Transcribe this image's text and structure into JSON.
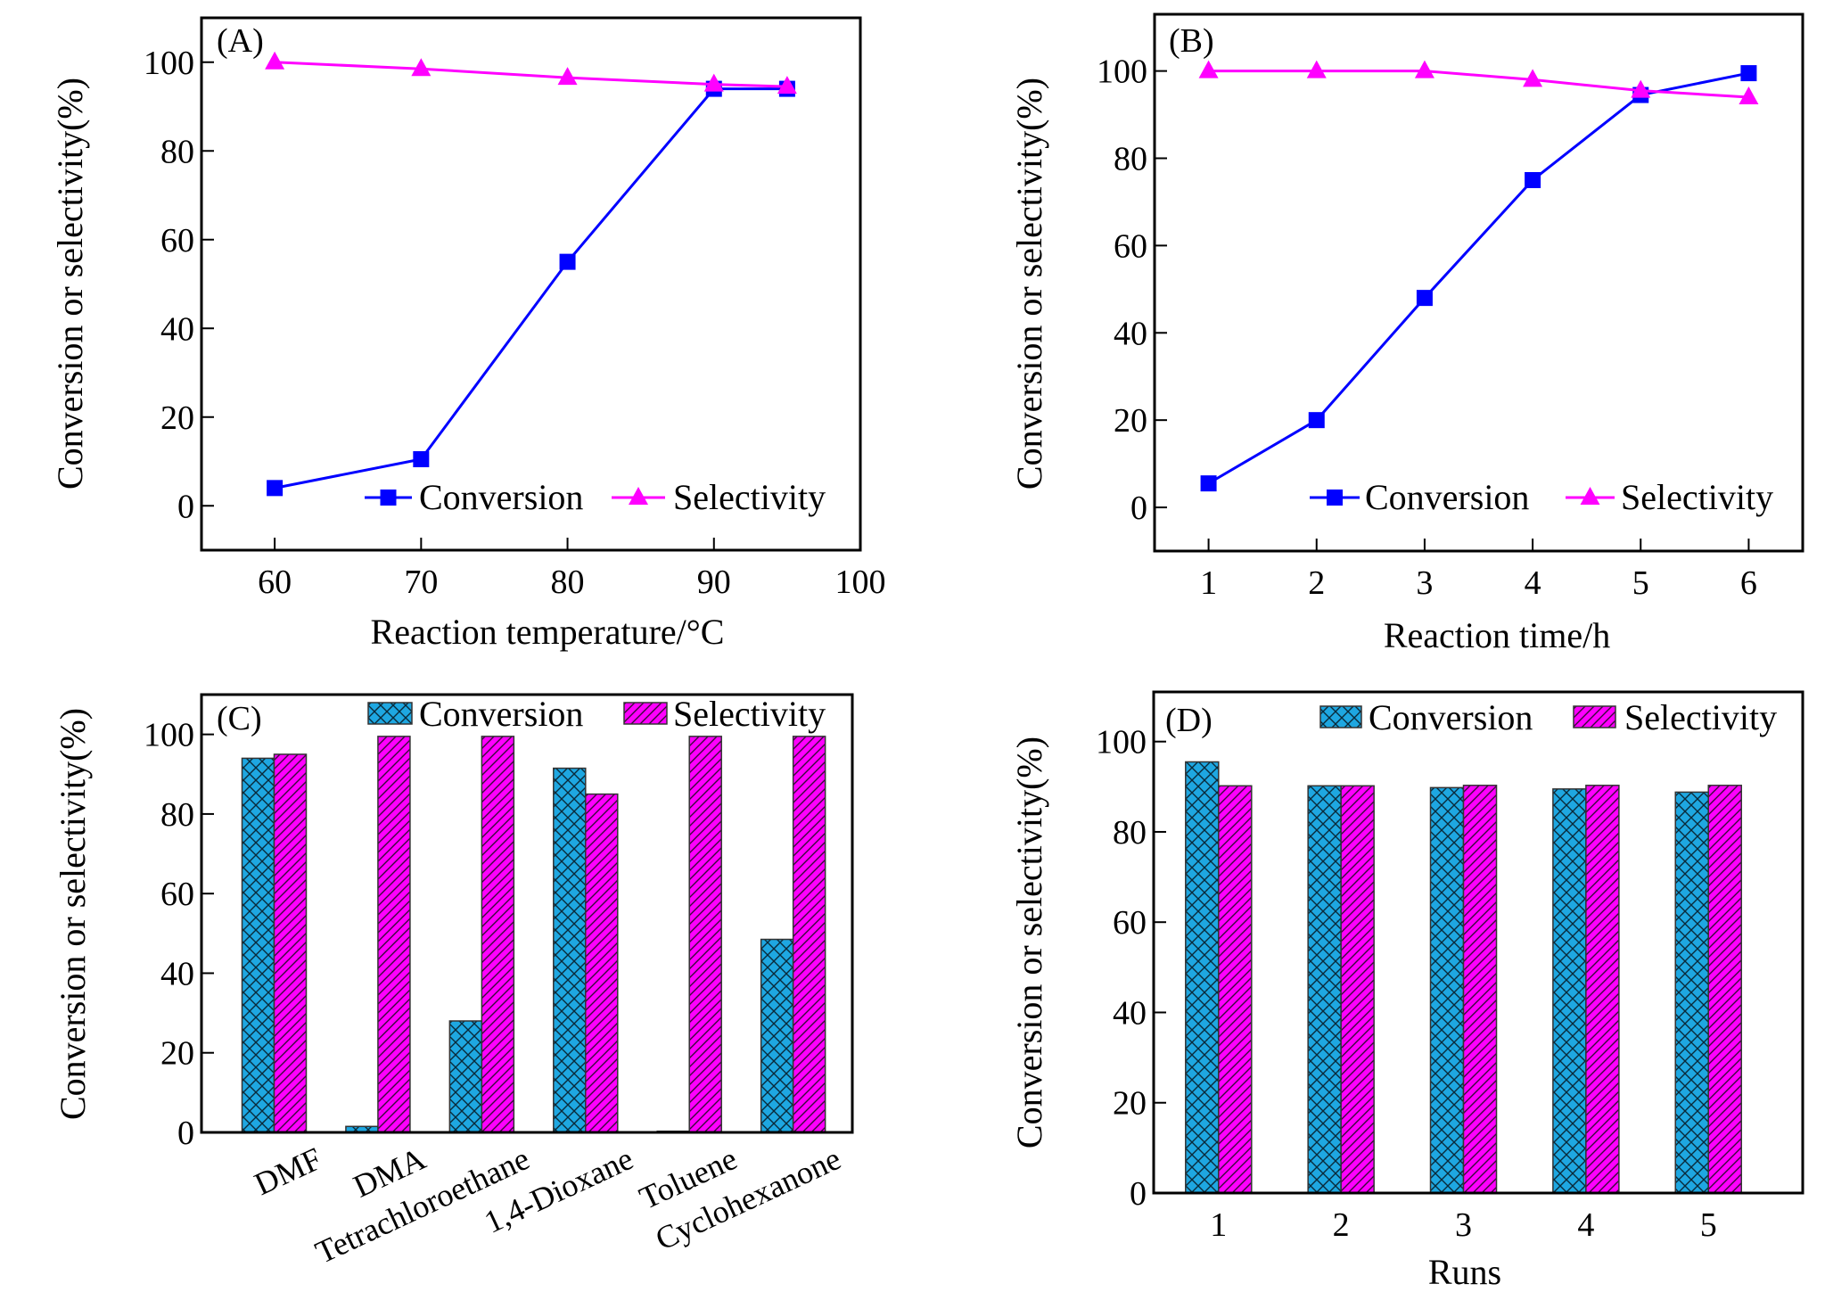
{
  "colors": {
    "conversion_line": "#0000ff",
    "selectivity_line": "#ff00ff",
    "conversion_bar": "#1ea7e1",
    "selectivity_bar": "#ff00ff"
  },
  "chart_data": [
    {
      "type": "line",
      "panel_label": "(A)",
      "xlabel": "Reaction temperature/°C",
      "ylabel": "Conversion or selectivity(%)",
      "xlim": [
        55,
        100
      ],
      "ylim": [
        -10,
        110
      ],
      "xticks": [
        60,
        70,
        80,
        90,
        100
      ],
      "yticks": [
        0,
        20,
        40,
        60,
        80,
        100
      ],
      "x": [
        60,
        70,
        80,
        90,
        95
      ],
      "series": [
        {
          "name": "Conversion",
          "marker": "square",
          "values": [
            4,
            10.5,
            55,
            94,
            94
          ]
        },
        {
          "name": "Selectivity",
          "marker": "triangle",
          "values": [
            100,
            98.5,
            96.5,
            95,
            94.5
          ]
        }
      ],
      "legend": "bottom-right",
      "grid": false
    },
    {
      "type": "line",
      "panel_label": "(B)",
      "xlabel": "Reaction time/h",
      "ylabel": "Conversion or selectivity(%)",
      "xlim": [
        0.5,
        6.5
      ],
      "ylim": [
        -10,
        113
      ],
      "xticks": [
        1,
        2,
        3,
        4,
        5,
        6
      ],
      "yticks": [
        0,
        20,
        40,
        60,
        80,
        100
      ],
      "x": [
        1,
        2,
        3,
        4,
        5,
        6
      ],
      "series": [
        {
          "name": "Conversion",
          "marker": "square",
          "values": [
            5.5,
            20,
            48,
            75,
            94.5,
            99.5
          ]
        },
        {
          "name": "Selectivity",
          "marker": "triangle",
          "values": [
            100,
            100,
            100,
            98,
            95.5,
            94
          ]
        }
      ],
      "legend": "bottom-right",
      "grid": false
    },
    {
      "type": "bar",
      "panel_label": "(C)",
      "xlabel": "",
      "ylabel": "Conversion or selectivity(%)",
      "ylim": [
        0,
        110
      ],
      "yticks": [
        0,
        20,
        40,
        60,
        80,
        100
      ],
      "categories": [
        "DMF",
        "DMA",
        "Tetrachloroethane",
        "1,4-Dioxane",
        "Toluene",
        "Cyclohexanone"
      ],
      "series": [
        {
          "name": "Conversion",
          "pattern": "crosshatch",
          "values": [
            94,
            1.5,
            28,
            91.5,
            0.3,
            48.5
          ]
        },
        {
          "name": "Selectivity",
          "pattern": "diagonal",
          "values": [
            95,
            99.5,
            99.5,
            85,
            99.5,
            99.5
          ]
        }
      ],
      "legend": "top-right",
      "grid": false
    },
    {
      "type": "bar",
      "panel_label": "(D)",
      "xlabel": "Runs",
      "ylabel": "Conversion or selectivity(%)",
      "ylim": [
        0,
        111
      ],
      "yticks": [
        0,
        20,
        40,
        60,
        80,
        100
      ],
      "categories": [
        "1",
        "2",
        "3",
        "4",
        "5"
      ],
      "series": [
        {
          "name": "Conversion",
          "pattern": "crosshatch",
          "values": [
            95.5,
            90.2,
            89.8,
            89.5,
            88.8
          ]
        },
        {
          "name": "Selectivity",
          "pattern": "diagonal",
          "values": [
            90.2,
            90.2,
            90.3,
            90.3,
            90.3
          ]
        }
      ],
      "legend": "top-right",
      "grid": false
    }
  ]
}
